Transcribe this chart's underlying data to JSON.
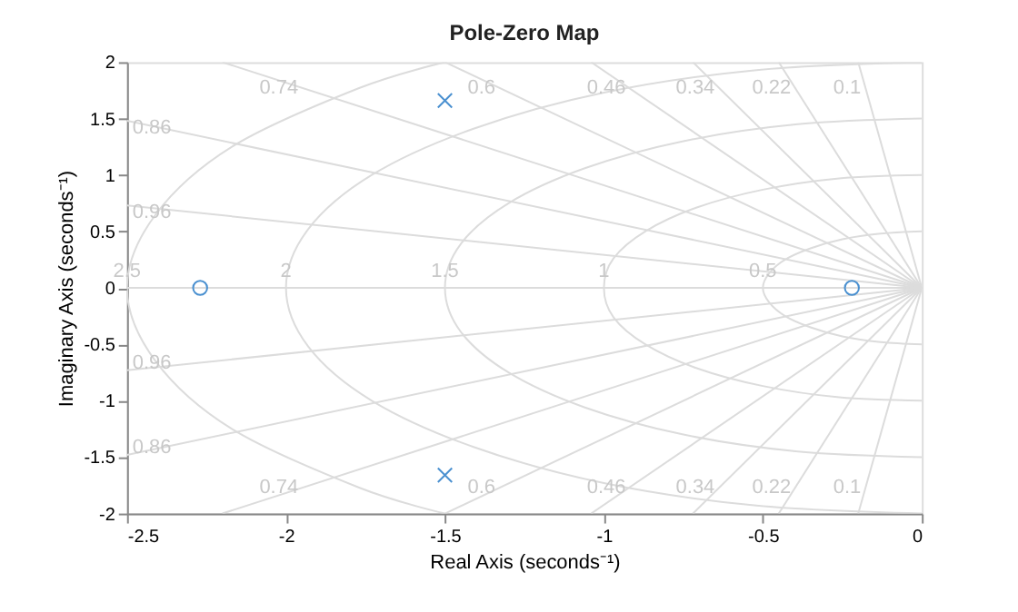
{
  "chart_data": {
    "type": "scatter",
    "title": "Pole-Zero Map",
    "xlabel": "Real Axis (seconds⁻¹)",
    "ylabel": "Imaginary Axis (seconds⁻¹)",
    "xlim": [
      -2.5,
      0
    ],
    "xticks": [
      -2.5,
      -2,
      -1.5,
      -1,
      -0.5,
      0
    ],
    "ylim": [
      -2,
      2
    ],
    "yticks": [
      -2,
      -1.5,
      -1,
      -0.5,
      0,
      0.5,
      1,
      1.5,
      2
    ],
    "grid": false,
    "series": [
      {
        "type": "line",
        "color": "#dcdcdc",
        "x": [
          0,
          -2.5
        ],
        "values": [
          0,
          0
        ]
      },
      {
        "type": "line",
        "color": "#dcdcdc",
        "x": [
          0,
          -0.2
        ],
        "values": [
          0,
          2
        ]
      },
      {
        "type": "line",
        "color": "#dcdcdc",
        "x": [
          0,
          -0.2
        ],
        "values": [
          0,
          -2
        ]
      },
      {
        "type": "line",
        "color": "#dcdcdc",
        "x": [
          0,
          -0.45
        ],
        "values": [
          0,
          2
        ]
      },
      {
        "type": "line",
        "color": "#dcdcdc",
        "x": [
          0,
          -0.45
        ],
        "values": [
          0,
          -2
        ]
      },
      {
        "type": "line",
        "color": "#dcdcdc",
        "x": [
          0,
          -0.72
        ],
        "values": [
          0,
          2
        ]
      },
      {
        "type": "line",
        "color": "#dcdcdc",
        "x": [
          0,
          -0.72
        ],
        "values": [
          0,
          -2
        ]
      },
      {
        "type": "line",
        "color": "#dcdcdc",
        "x": [
          0,
          -1.04
        ],
        "values": [
          0,
          2
        ]
      },
      {
        "type": "line",
        "color": "#dcdcdc",
        "x": [
          0,
          -1.04
        ],
        "values": [
          0,
          -2
        ]
      },
      {
        "type": "line",
        "color": "#dcdcdc",
        "x": [
          0,
          -1.5
        ],
        "values": [
          0,
          2
        ]
      },
      {
        "type": "line",
        "color": "#dcdcdc",
        "x": [
          0,
          -1.5
        ],
        "values": [
          0,
          -2
        ]
      },
      {
        "type": "line",
        "color": "#dcdcdc",
        "x": [
          0,
          -2.2
        ],
        "values": [
          0,
          2
        ]
      },
      {
        "type": "line",
        "color": "#dcdcdc",
        "x": [
          0,
          -2.2
        ],
        "values": [
          0,
          -2
        ]
      },
      {
        "type": "line",
        "color": "#dcdcdc",
        "x": [
          0,
          -2.5
        ],
        "values": [
          0,
          1.48
        ]
      },
      {
        "type": "line",
        "color": "#dcdcdc",
        "x": [
          0,
          -2.5
        ],
        "values": [
          0,
          -1.48
        ]
      },
      {
        "type": "line",
        "color": "#dcdcdc",
        "x": [
          0,
          -2.5
        ],
        "values": [
          0,
          0.73
        ]
      },
      {
        "type": "line",
        "color": "#dcdcdc",
        "x": [
          0,
          -2.5
        ],
        "values": [
          0,
          -0.73
        ]
      },
      {
        "type": "line",
        "color": "#dcdcdc",
        "x": [
          0,
          -0.13,
          -0.25,
          -0.35,
          -0.43,
          -0.48,
          -0.5,
          -0.48,
          -0.43,
          -0.35,
          -0.25,
          -0.13,
          0
        ],
        "values": [
          -0.5,
          -0.48,
          -0.43,
          -0.35,
          -0.25,
          -0.13,
          0,
          0.13,
          0.25,
          0.35,
          0.43,
          0.48,
          0.5
        ]
      },
      {
        "type": "line",
        "color": "#dcdcdc",
        "x": [
          0,
          -0.26,
          -0.5,
          -0.71,
          -0.87,
          -0.97,
          -1,
          -0.97,
          -0.87,
          -0.71,
          -0.5,
          -0.26,
          0
        ],
        "values": [
          -1,
          -0.97,
          -0.87,
          -0.71,
          -0.5,
          -0.26,
          0,
          0.26,
          0.5,
          0.71,
          0.87,
          0.97,
          1
        ]
      },
      {
        "type": "line",
        "color": "#dcdcdc",
        "x": [
          0,
          -0.39,
          -0.75,
          -1.06,
          -1.3,
          -1.45,
          -1.5,
          -1.45,
          -1.3,
          -1.06,
          -0.75,
          -0.39,
          0
        ],
        "values": [
          -1.5,
          -1.45,
          -1.3,
          -1.06,
          -0.75,
          -0.39,
          0,
          0.39,
          0.75,
          1.06,
          1.3,
          1.45,
          1.5
        ]
      },
      {
        "type": "line",
        "color": "#dcdcdc",
        "x": [
          0,
          -0.52,
          -1,
          -1.41,
          -1.73,
          -1.93,
          -2,
          -1.93,
          -1.73,
          -1.41,
          -1,
          -0.52,
          0
        ],
        "values": [
          -2,
          -1.93,
          -1.73,
          -1.41,
          -1,
          -0.52,
          0,
          0.52,
          1,
          1.41,
          1.73,
          1.93,
          2
        ]
      },
      {
        "type": "line",
        "color": "#dcdcdc",
        "x": [
          -1.5,
          -1.77,
          -2.17,
          -2.41,
          -2.5,
          -2.41,
          -2.17,
          -1.77,
          -1.5
        ],
        "values": [
          -2,
          -1.77,
          -1.25,
          -0.65,
          0,
          0.65,
          1.25,
          1.77,
          2
        ]
      },
      {
        "type": "scatter",
        "marker": "cross",
        "color": "#4a90d0",
        "x": [
          -1.5,
          -1.5
        ],
        "values": [
          1.66,
          -1.66
        ]
      },
      {
        "type": "scatter",
        "marker": "circle",
        "color": "#4a90d0",
        "x": [
          -2.27,
          -0.22
        ],
        "values": [
          0,
          0
        ]
      }
    ],
    "annotations": [
      {
        "text": "0.74",
        "x": -1.95,
        "y": 1.77
      },
      {
        "text": "0.6",
        "x": -1.33,
        "y": 1.77
      },
      {
        "text": "0.46",
        "x": -0.92,
        "y": 1.77
      },
      {
        "text": "0.34",
        "x": -0.64,
        "y": 1.77
      },
      {
        "text": "0.22",
        "x": -0.4,
        "y": 1.77
      },
      {
        "text": "0.1",
        "x": -0.18,
        "y": 1.77
      },
      {
        "text": "0.86",
        "x": -2.5,
        "y": 1.48
      },
      {
        "text": "0.96",
        "x": -2.5,
        "y": 0.73
      },
      {
        "text": "2.5",
        "x": -2.5,
        "y": 0
      },
      {
        "text": "2",
        "x": -2,
        "y": 0
      },
      {
        "text": "1.5",
        "x": -1.5,
        "y": 0
      },
      {
        "text": "1",
        "x": -1,
        "y": 0
      },
      {
        "text": "0.5",
        "x": -0.5,
        "y": 0
      },
      {
        "text": "0.96",
        "x": -2.5,
        "y": -0.73
      },
      {
        "text": "0.86",
        "x": -2.5,
        "y": -1.48
      },
      {
        "text": "0.74",
        "x": -1.95,
        "y": -1.77
      },
      {
        "text": "0.6",
        "x": -1.33,
        "y": -1.77
      },
      {
        "text": "0.46",
        "x": -0.92,
        "y": -1.77
      },
      {
        "text": "0.34",
        "x": -0.64,
        "y": -1.77
      },
      {
        "text": "0.22",
        "x": -0.4,
        "y": -1.77
      },
      {
        "text": "0.1",
        "x": -0.18,
        "y": -1.77
      }
    ]
  }
}
